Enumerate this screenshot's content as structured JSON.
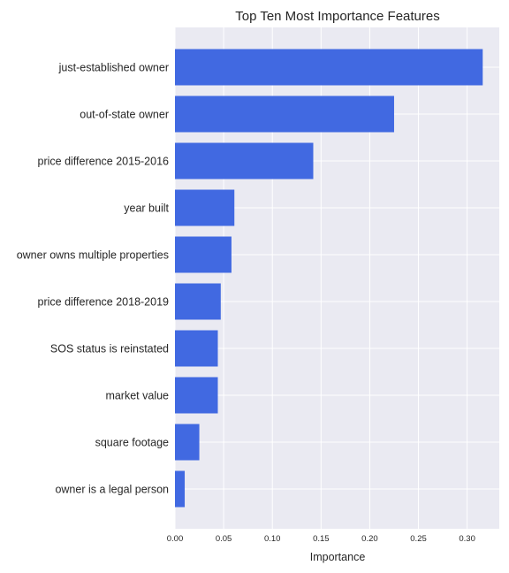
{
  "chart_data": {
    "type": "bar",
    "orientation": "horizontal",
    "title": "Top Ten Most Importance Features",
    "xlabel": "Importance",
    "ylabel": "",
    "categories": [
      "just-established owner",
      "out-of-state owner",
      "price difference 2015-2016",
      "year built",
      "owner owns multiple properties",
      "price difference 2018-2019",
      "SOS status is reinstated",
      "market value",
      "square footage",
      "owner is a legal person"
    ],
    "values": [
      0.316,
      0.225,
      0.142,
      0.061,
      0.058,
      0.047,
      0.044,
      0.044,
      0.025,
      0.01
    ],
    "xlim": [
      0,
      0.333
    ],
    "xticks": [
      "0.00",
      "0.05",
      "0.10",
      "0.15",
      "0.20",
      "0.25",
      "0.30"
    ],
    "xtick_values": [
      0,
      0.05,
      0.1,
      0.15,
      0.2,
      0.25,
      0.3
    ],
    "grid": true,
    "colors": {
      "bar": "#4169e1",
      "background": "#eaeaf2",
      "grid": "#ffffff"
    }
  }
}
